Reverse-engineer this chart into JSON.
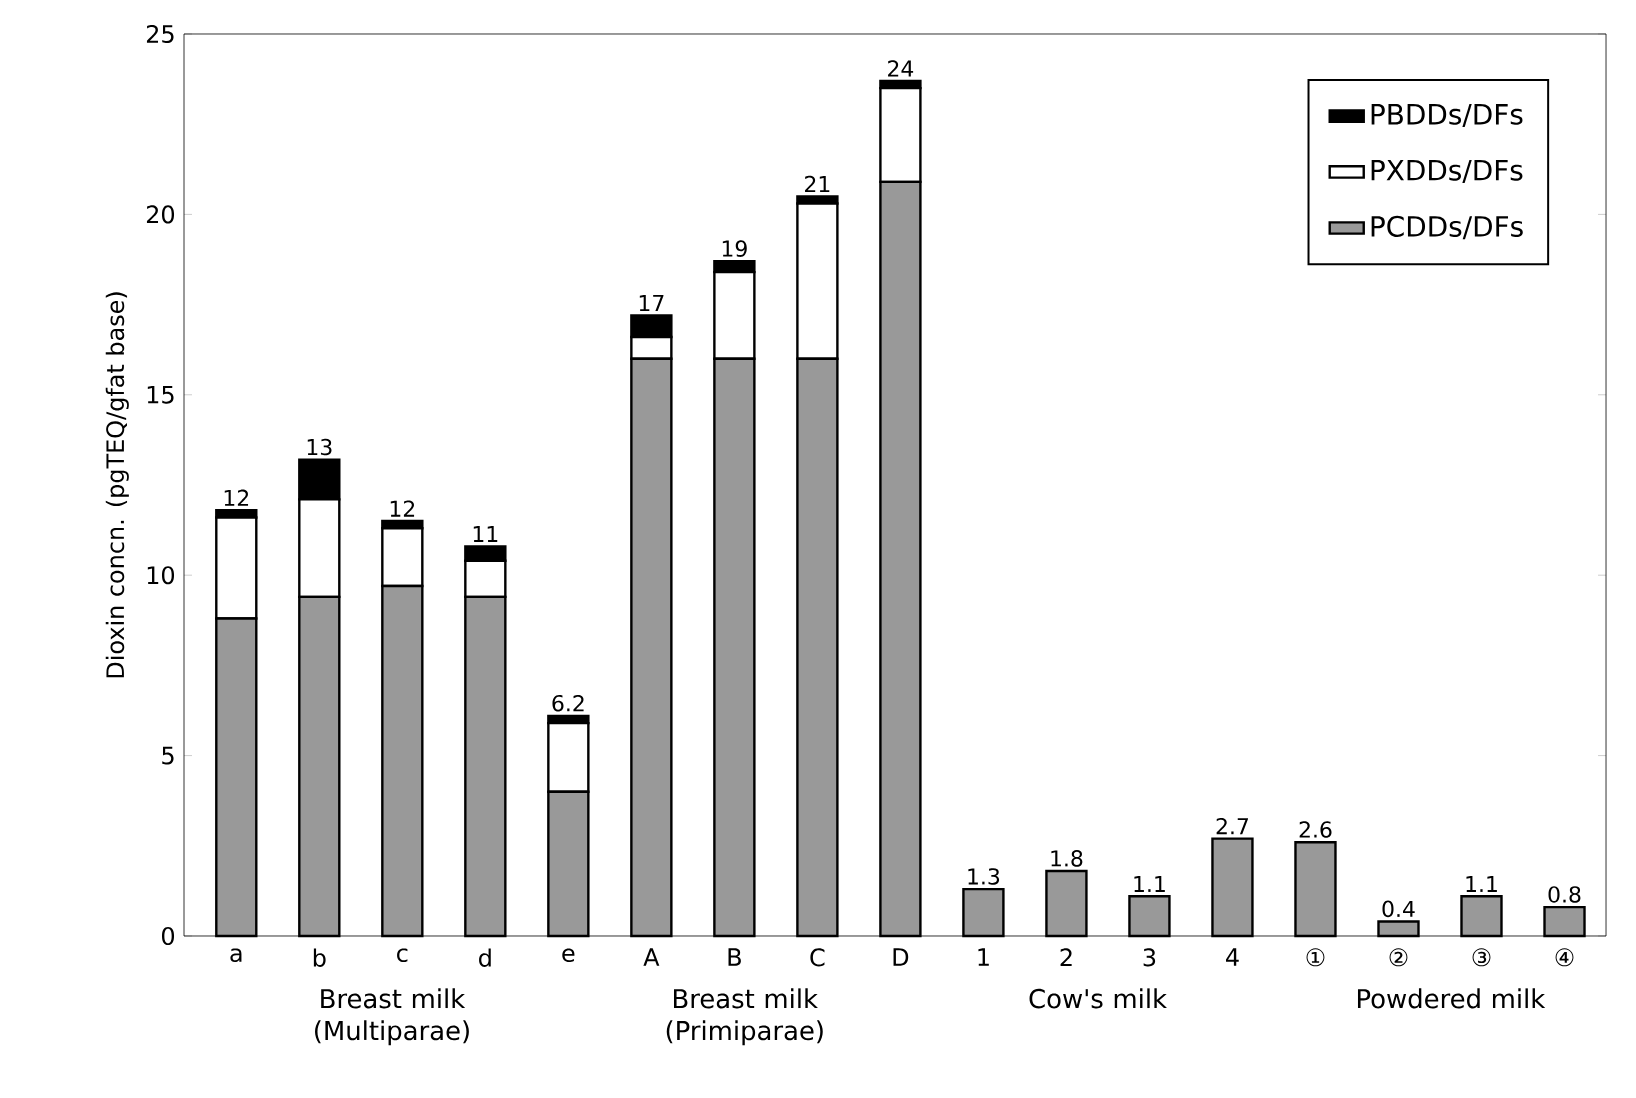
{
  "chart_data": {
    "type": "bar",
    "stacked": true,
    "ylabel": "Dioxin concn. (pgTEQ/gfat base)",
    "categories": [
      "a",
      "b",
      "c",
      "d",
      "e",
      "A",
      "B",
      "C",
      "D",
      "1",
      "2",
      "3",
      "4",
      "①",
      "②",
      "③",
      "④"
    ],
    "series": [
      {
        "name": "PCDDs/DFs",
        "color": "#999999",
        "values": [
          8.8,
          9.4,
          9.7,
          9.4,
          4.0,
          16.0,
          16.0,
          16.0,
          20.9,
          1.3,
          1.8,
          1.1,
          2.7,
          2.6,
          0.4,
          1.1,
          0.8
        ]
      },
      {
        "name": "PXDDs/DFs",
        "color": "#ffffff",
        "values": [
          2.8,
          2.7,
          1.6,
          1.0,
          1.9,
          0.6,
          2.4,
          4.3,
          2.6,
          null,
          null,
          null,
          null,
          null,
          null,
          null,
          null
        ]
      },
      {
        "name": "PBDDs/DFs",
        "color": "#000000",
        "values": [
          0.2,
          1.1,
          0.2,
          0.4,
          0.2,
          0.6,
          0.3,
          0.2,
          0.2,
          null,
          null,
          null,
          null,
          null,
          null,
          null,
          null
        ]
      }
    ],
    "totals": [
      "12",
      "13",
      "12",
      "11",
      "6.2",
      "17",
      "19",
      "21",
      "24",
      "1.3",
      "1.8",
      "1.1",
      "2.7",
      "2.6",
      "0.4",
      "1.1",
      "0.8"
    ],
    "ylim": [
      0,
      25
    ],
    "yticks": [
      0,
      5,
      10,
      15,
      20,
      25
    ],
    "legend": "top right",
    "grid": false,
    "annotations": [
      "Breast milk (Multiparae)",
      "Breast milk (Primiparae)",
      "Cow's milk",
      "Powdered milk"
    ]
  }
}
